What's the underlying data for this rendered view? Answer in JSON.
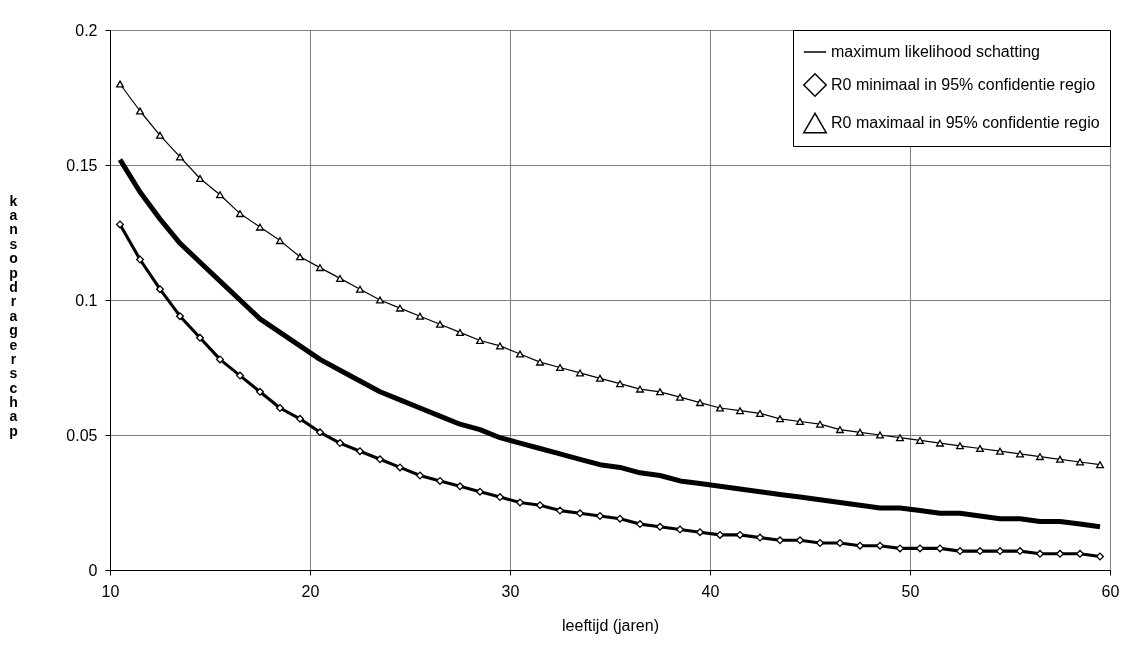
{
  "chart_data": {
    "type": "line",
    "xlabel": "leeftijd (jaren)",
    "ylabel": "kans op dragerschap",
    "x": [
      10.5,
      11.5,
      12.5,
      13.5,
      14.5,
      15.5,
      16.5,
      17.5,
      18.5,
      19.5,
      20.5,
      21.5,
      22.5,
      23.5,
      24.5,
      25.5,
      26.5,
      27.5,
      28.5,
      29.5,
      30.5,
      31.5,
      32.5,
      33.5,
      34.5,
      35.5,
      36.5,
      37.5,
      38.5,
      39.5,
      40.5,
      41.5,
      42.5,
      43.5,
      44.5,
      45.5,
      46.5,
      47.5,
      48.5,
      49.5,
      50.5,
      51.5,
      52.5,
      53.5,
      54.5,
      55.5,
      56.5,
      57.5,
      58.5,
      59.5
    ],
    "xlim": [
      10,
      60
    ],
    "xticks": [
      10,
      20,
      30,
      40,
      50,
      60
    ],
    "ylim": [
      0,
      0.2
    ],
    "yticks": [
      0,
      0.05,
      0.1,
      0.15,
      0.2
    ],
    "grid": true,
    "legend": "top right",
    "series": [
      {
        "name": "maximum likelihood schatting",
        "color": "#000000",
        "marker": "none",
        "values": [
          0.152,
          0.14,
          0.13,
          0.121,
          0.114,
          0.107,
          0.1,
          0.093,
          0.088,
          0.083,
          0.078,
          0.074,
          0.07,
          0.066,
          0.063,
          0.06,
          0.057,
          0.054,
          0.052,
          0.049,
          0.047,
          0.045,
          0.043,
          0.041,
          0.039,
          0.038,
          0.036,
          0.035,
          0.033,
          0.032,
          0.031,
          0.03,
          0.029,
          0.028,
          0.027,
          0.026,
          0.025,
          0.024,
          0.023,
          0.023,
          0.022,
          0.021,
          0.021,
          0.02,
          0.019,
          0.019,
          0.018,
          0.018,
          0.017,
          0.016
        ]
      },
      {
        "name": "R0 minimaal in 95% confidentie regio",
        "color": "#000000",
        "marker": "diamond",
        "values": [
          0.128,
          0.115,
          0.104,
          0.094,
          0.086,
          0.078,
          0.072,
          0.066,
          0.06,
          0.056,
          0.051,
          0.047,
          0.044,
          0.041,
          0.038,
          0.035,
          0.033,
          0.031,
          0.029,
          0.027,
          0.025,
          0.024,
          0.022,
          0.021,
          0.02,
          0.019,
          0.017,
          0.016,
          0.015,
          0.014,
          0.013,
          0.013,
          0.012,
          0.011,
          0.011,
          0.01,
          0.01,
          0.009,
          0.009,
          0.008,
          0.008,
          0.008,
          0.007,
          0.007,
          0.007,
          0.007,
          0.006,
          0.006,
          0.006,
          0.005
        ]
      },
      {
        "name": "R0 maximaal in 95% confidentie regio",
        "color": "#000000",
        "marker": "triangle",
        "values": [
          0.18,
          0.17,
          0.161,
          0.153,
          0.145,
          0.139,
          0.132,
          0.127,
          0.122,
          0.116,
          0.112,
          0.108,
          0.104,
          0.1,
          0.097,
          0.094,
          0.091,
          0.088,
          0.085,
          0.083,
          0.08,
          0.077,
          0.075,
          0.073,
          0.071,
          0.069,
          0.067,
          0.066,
          0.064,
          0.062,
          0.06,
          0.059,
          0.058,
          0.056,
          0.055,
          0.054,
          0.052,
          0.051,
          0.05,
          0.049,
          0.048,
          0.047,
          0.046,
          0.045,
          0.044,
          0.043,
          0.042,
          0.041,
          0.04,
          0.039
        ]
      }
    ]
  }
}
